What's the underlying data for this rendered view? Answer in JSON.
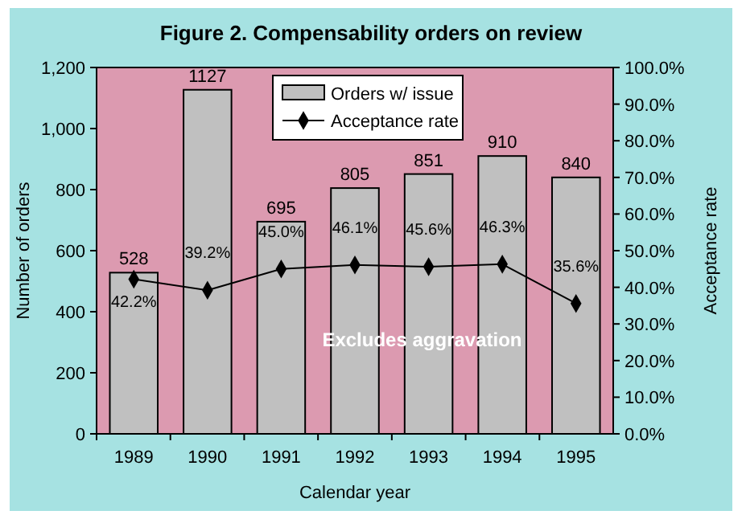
{
  "chart_data": {
    "type": "bar",
    "title": "Figure 2. Compensability orders on review",
    "xlabel": "Calendar year",
    "ylabel": "Number of orders",
    "y2label": "Acceptance rate",
    "categories": [
      "1989",
      "1990",
      "1991",
      "1992",
      "1993",
      "1994",
      "1995"
    ],
    "series": [
      {
        "name": "Orders w/ issue",
        "color": "#c0c0c0",
        "values": [
          528,
          1127,
          695,
          805,
          851,
          910,
          840
        ]
      },
      {
        "name": "Acceptance rate",
        "type": "line",
        "axis": "y2",
        "color": "#000000",
        "marker": "diamond",
        "values": [
          42.2,
          39.2,
          45.0,
          46.1,
          45.6,
          46.3,
          35.6
        ],
        "value_labels": [
          "42.2%",
          "39.2%",
          "45.0%",
          "46.1%",
          "45.6%",
          "46.3%",
          "35.6%"
        ]
      }
    ],
    "ylim": [
      0,
      1200
    ],
    "yticks": [
      0,
      200,
      400,
      600,
      800,
      {
        "value": 1000,
        "label": "1,000"
      },
      {
        "value": 1200,
        "label": "1,200"
      }
    ],
    "y2lim": [
      0,
      100
    ],
    "y2ticks": [
      {
        "value": 0,
        "label": "0.0%"
      },
      {
        "value": 10,
        "label": "10.0%"
      },
      {
        "value": 20,
        "label": "20.0%"
      },
      {
        "value": 30,
        "label": "30.0%"
      },
      {
        "value": 40,
        "label": "40.0%"
      },
      {
        "value": 50,
        "label": "50.0%"
      },
      {
        "value": 60,
        "label": "60.0%"
      },
      {
        "value": 70,
        "label": "70.0%"
      },
      {
        "value": 80,
        "label": "80.0%"
      },
      {
        "value": 90,
        "label": "90.0%"
      },
      {
        "value": 100,
        "label": "100.0%"
      }
    ],
    "data_labels": true,
    "legend": "top",
    "grid": false,
    "annotations": [
      "Excludes aggravation"
    ]
  }
}
